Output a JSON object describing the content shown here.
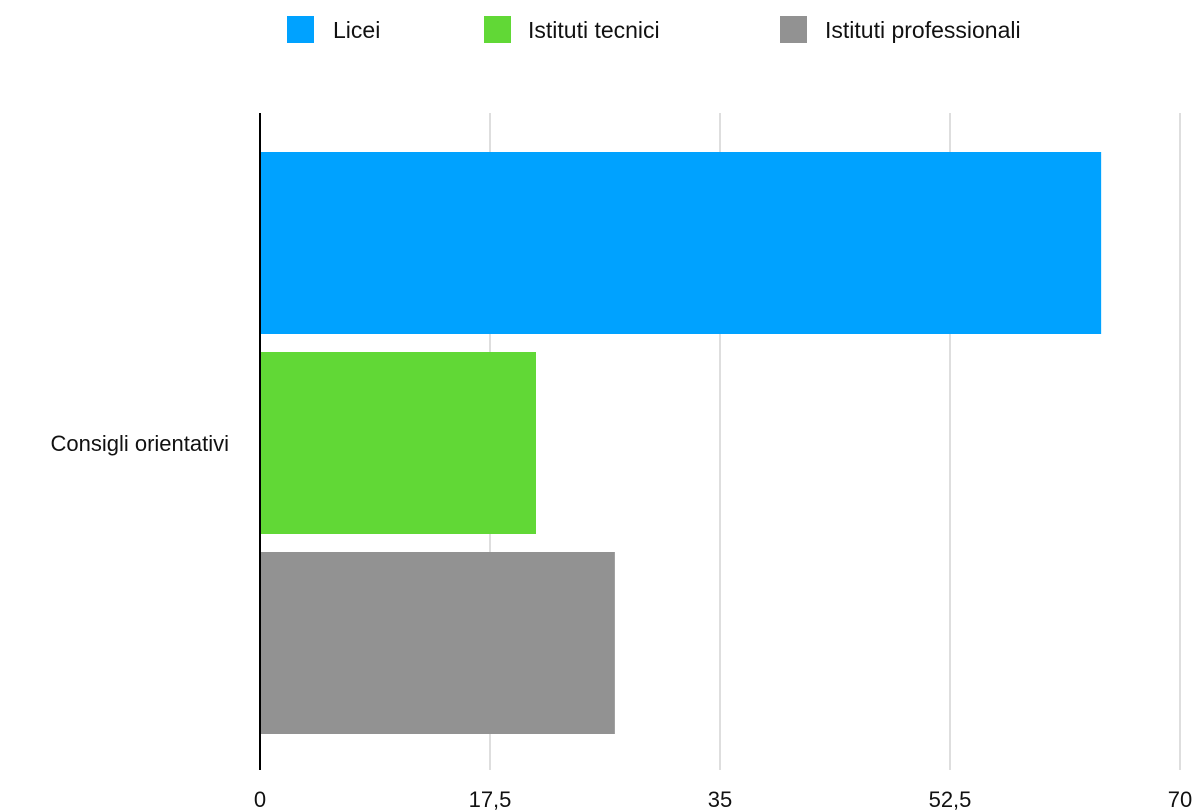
{
  "chart_data": {
    "type": "bar",
    "orientation": "horizontal",
    "categories": [
      "Consigli orientativi"
    ],
    "series": [
      {
        "name": "Licei",
        "values": [
          64
        ],
        "color": "#00A2FF"
      },
      {
        "name": "Istituti tecnici",
        "values": [
          21
        ],
        "color": "#61D836"
      },
      {
        "name": "Istituti professionali",
        "values": [
          27
        ],
        "color": "#929292"
      }
    ],
    "xlim": [
      0,
      70
    ],
    "xticks": [
      0,
      17.5,
      35,
      52.5,
      70
    ],
    "xtick_labels": [
      "0",
      "17,5",
      "35",
      "52,5",
      "70"
    ],
    "grid": "vertical",
    "legend": "top",
    "title": "",
    "xlabel": "",
    "ylabel": ""
  }
}
